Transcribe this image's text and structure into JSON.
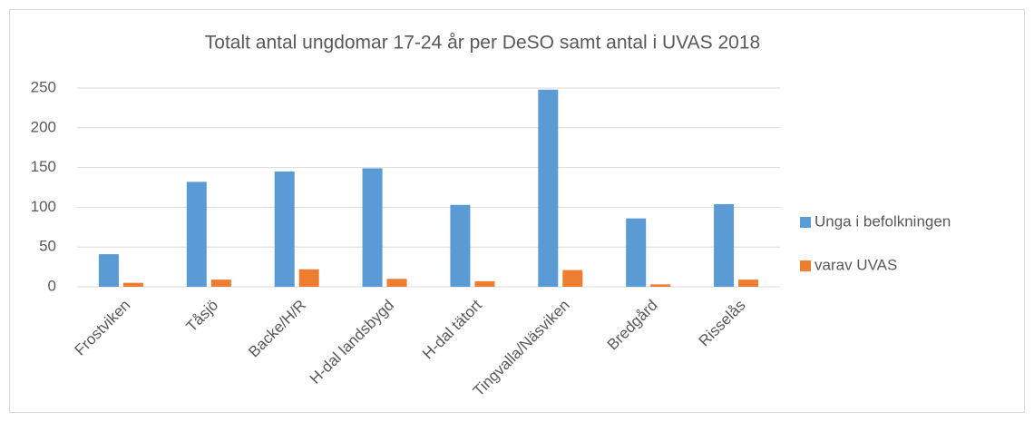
{
  "chart_data": {
    "type": "bar",
    "title": "Totalt antal ungdomar 17-24 år per DeSO samt antal i UVAS 2018",
    "categories": [
      "Frostviken",
      "Tåsjö",
      "Backe/H/R",
      "H-dal landsbygd",
      "H-dal tätort",
      "Tingvalla/Näsviken",
      "Bredgård",
      "Risselås"
    ],
    "series": [
      {
        "name": "Unga i befolkningen",
        "color": "#5b9bd5",
        "values": [
          41,
          132,
          145,
          149,
          103,
          248,
          86,
          104
        ]
      },
      {
        "name": "varav UVAS",
        "color": "#ed7d31",
        "values": [
          5,
          9,
          22,
          10,
          7,
          21,
          3,
          9
        ]
      }
    ],
    "ylim": [
      0,
      250
    ],
    "yticks": [
      0,
      50,
      100,
      150,
      200,
      250
    ],
    "grid": true,
    "legend": "right"
  }
}
